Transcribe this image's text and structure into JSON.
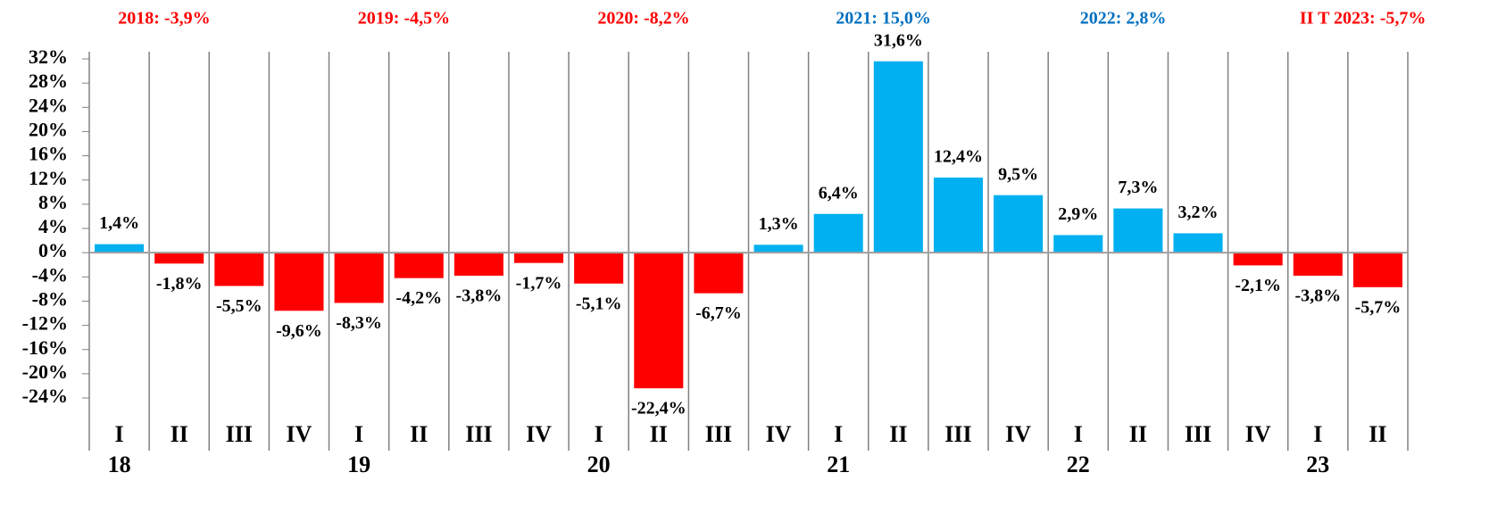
{
  "chart_data": {
    "type": "bar",
    "categories": [
      "I",
      "II",
      "III",
      "IV",
      "I",
      "II",
      "III",
      "IV",
      "I",
      "II",
      "III",
      "IV",
      "I",
      "II",
      "III",
      "IV",
      "I",
      "II",
      "III",
      "IV",
      "I",
      "II"
    ],
    "years": [
      "18",
      null,
      null,
      null,
      "19",
      null,
      null,
      null,
      "20",
      null,
      null,
      null,
      "21",
      null,
      null,
      null,
      "22",
      null,
      null,
      null,
      "23",
      null
    ],
    "values": [
      1.4,
      -1.8,
      -5.5,
      -9.6,
      -8.3,
      -4.2,
      -3.8,
      -1.7,
      -5.1,
      -22.4,
      -6.7,
      1.3,
      6.4,
      31.6,
      12.4,
      9.5,
      2.9,
      7.3,
      3.2,
      -2.1,
      -3.8,
      -5.7
    ],
    "value_labels": [
      "1,4%",
      "-1,8%",
      "-5,5%",
      "-9,6%",
      "-8,3%",
      "-4,2%",
      "-3,8%",
      "-1,7%",
      "-5,1%",
      "-22,4%",
      "-6,7%",
      "1,3%",
      "6,4%",
      "31,6%",
      "12,4%",
      "9,5%",
      "2,9%",
      "7,3%",
      "3,2%",
      "-2,1%",
      "-3,8%",
      "-5,7%"
    ],
    "positive_color": "#00b0f0",
    "negative_color": "#ff0000",
    "annotations": [
      {
        "text": "2018: -3,9%",
        "color": "#ff0000"
      },
      {
        "text": "2019: -4,5%",
        "color": "#ff0000"
      },
      {
        "text": "2020: -8,2%",
        "color": "#ff0000"
      },
      {
        "text": "2021: 15,0%",
        "color": "#0070c0"
      },
      {
        "text": "2022: 2,8%",
        "color": "#0070c0"
      },
      {
        "text": "II T 2023: -5,7%",
        "color": "#ff0000"
      }
    ],
    "ylim": [
      -24,
      32
    ],
    "yticks": [
      {
        "value": 32,
        "label": "32%"
      },
      {
        "value": 28,
        "label": "28%"
      },
      {
        "value": 24,
        "label": "24%"
      },
      {
        "value": 20,
        "label": "20%"
      },
      {
        "value": 16,
        "label": "16%"
      },
      {
        "value": 12,
        "label": "12%"
      },
      {
        "value": 8,
        "label": "8%"
      },
      {
        "value": 4,
        "label": "4%"
      },
      {
        "value": 0,
        "label": "0%"
      },
      {
        "value": -4,
        "label": "-4%"
      },
      {
        "value": -8,
        "label": "-8%"
      },
      {
        "value": -12,
        "label": "-12%"
      },
      {
        "value": -16,
        "label": "-16%"
      },
      {
        "value": -20,
        "label": "-20%"
      },
      {
        "value": -24,
        "label": "-24%"
      }
    ]
  }
}
